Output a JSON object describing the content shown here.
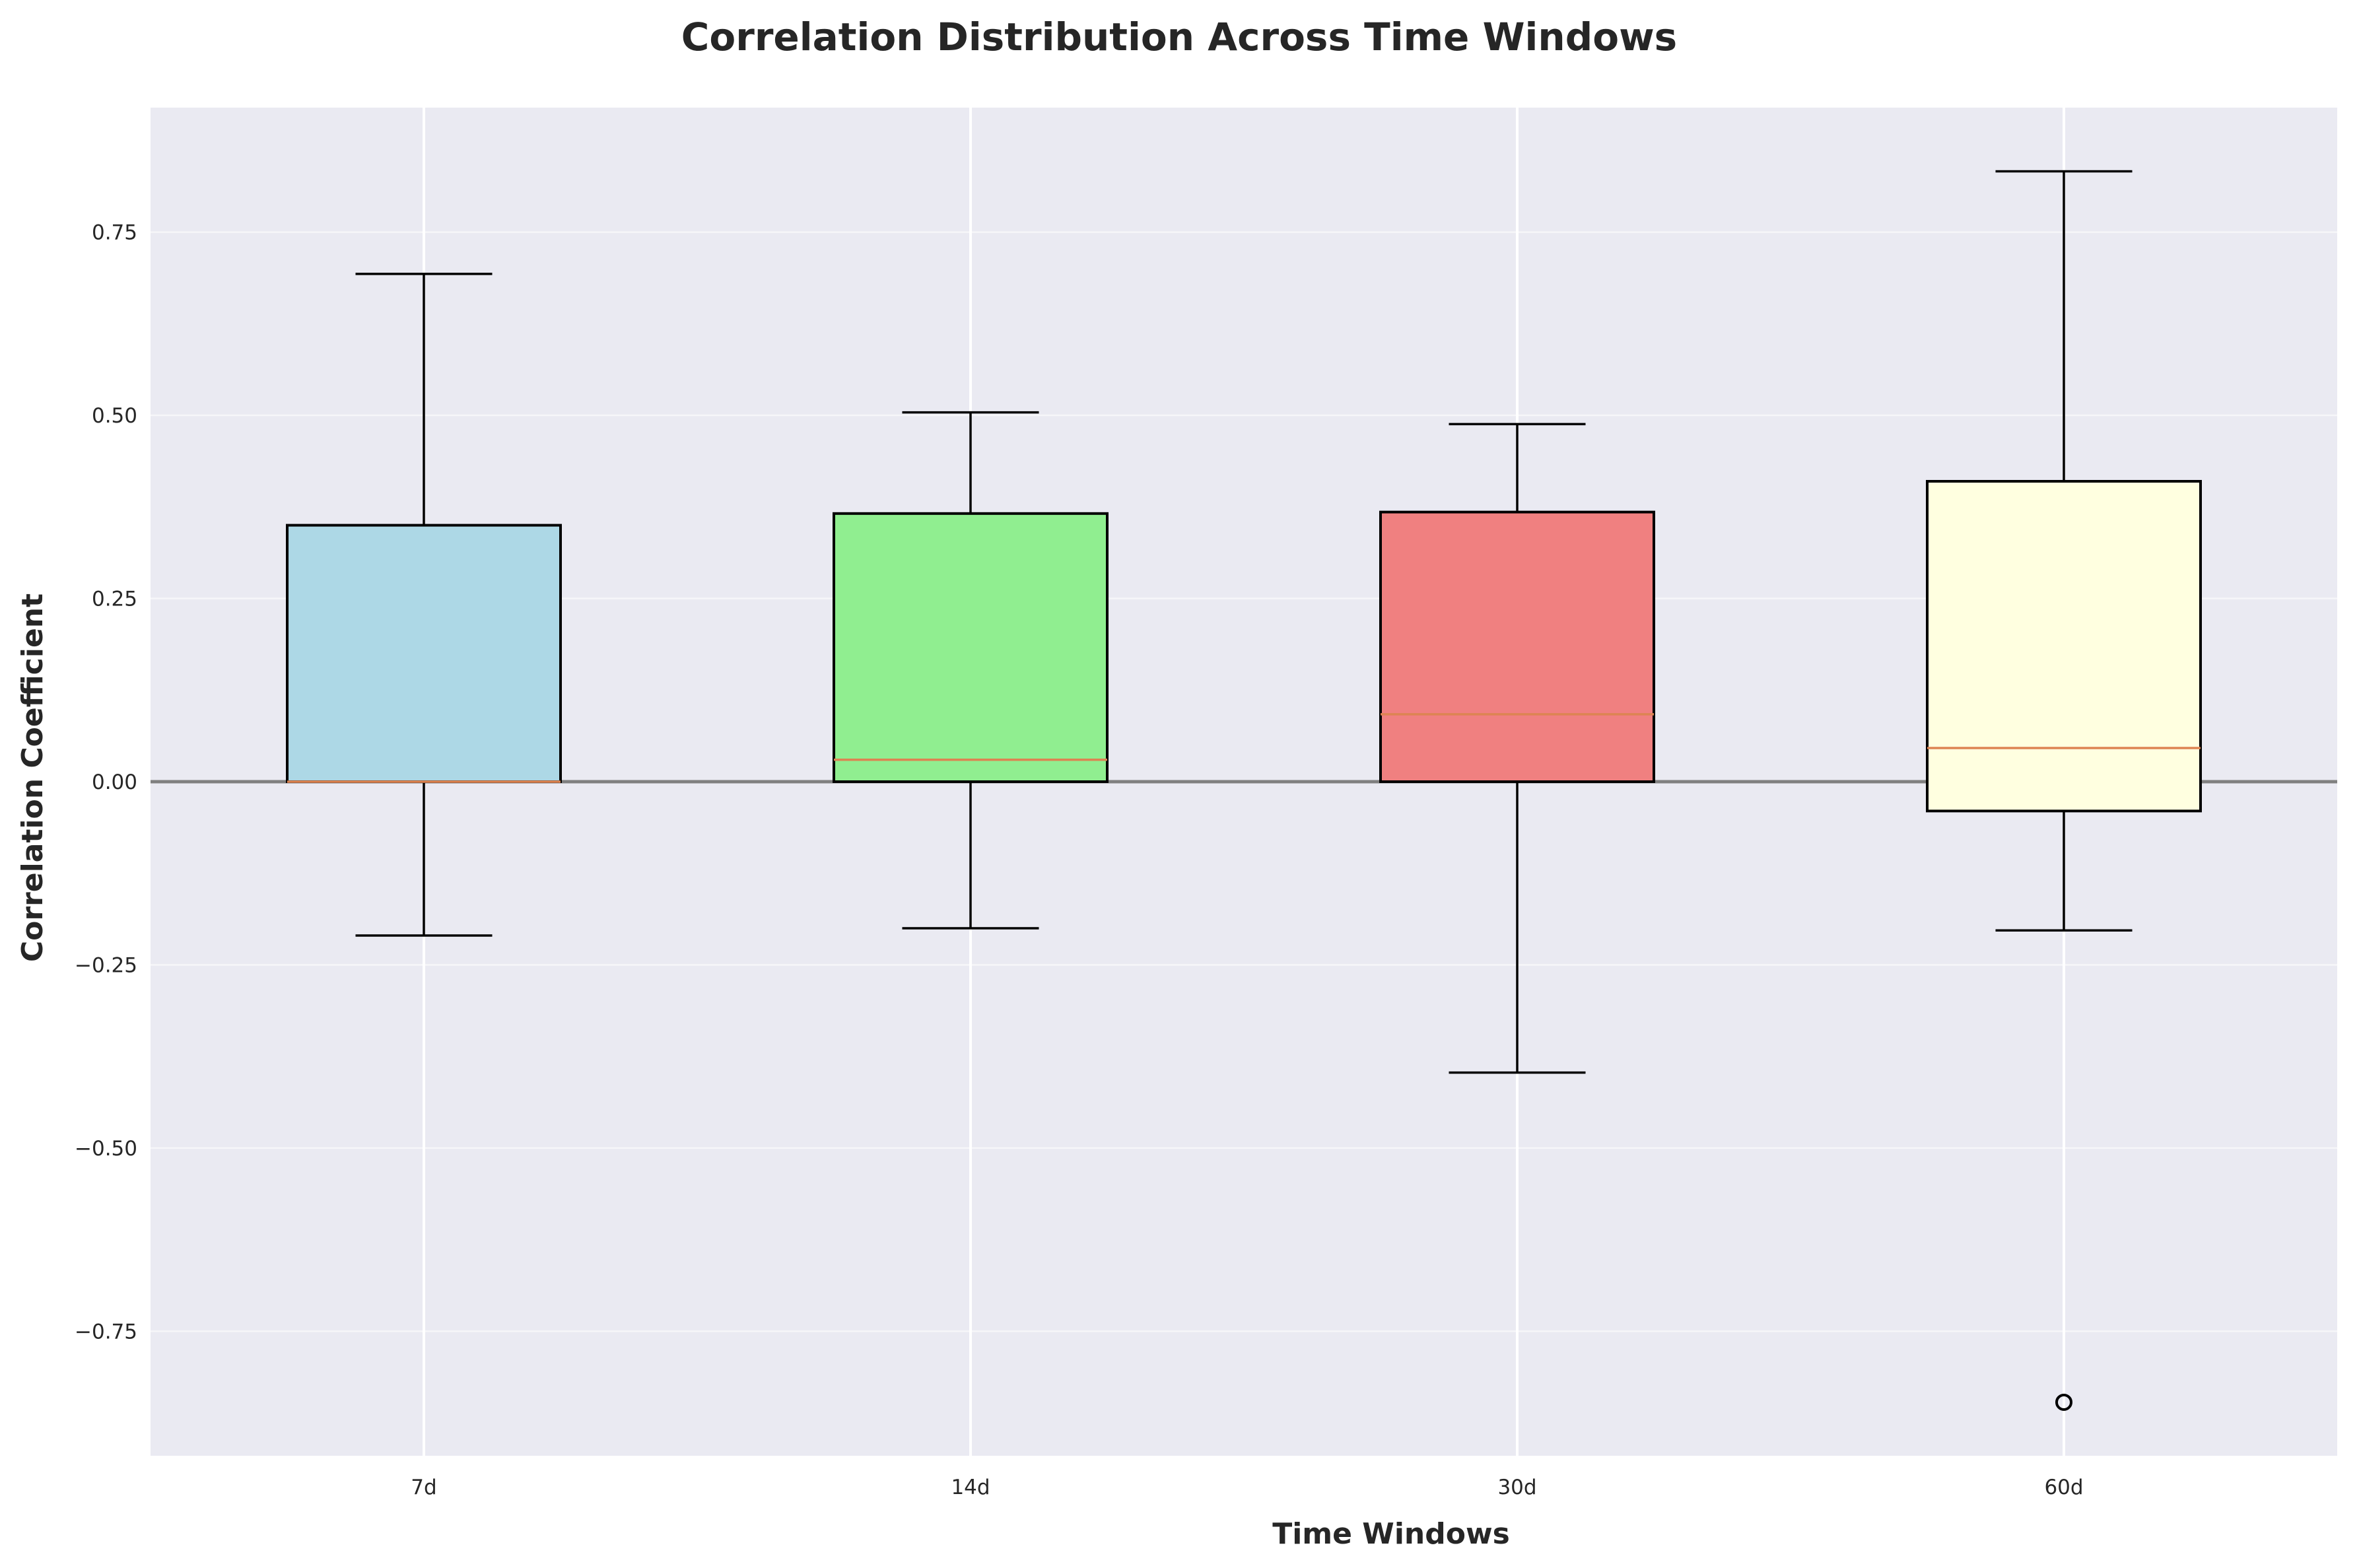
{
  "chart_data": {
    "type": "box",
    "title": "Correlation Distribution Across Time Windows",
    "xlabel": "Time Windows",
    "ylabel": "Correlation Coefficient",
    "categories": [
      "7d",
      "14d",
      "30d",
      "60d"
    ],
    "ylim": [
      -0.92,
      0.92
    ],
    "yticks": [
      -0.75,
      -0.5,
      -0.25,
      0.0,
      0.25,
      0.5,
      0.75
    ],
    "ytick_labels": [
      "−0.75",
      "−0.50",
      "−0.25",
      "0.00",
      "0.25",
      "0.50",
      "0.75"
    ],
    "grid": true,
    "zero_line": 0.0,
    "background_color": "#eaeaf2",
    "median_color": "#dd8452",
    "boxes": [
      {
        "category": "7d",
        "whisker_low": -0.21,
        "q1": 0.0,
        "median": 0.0,
        "q3": 0.35,
        "whisker_high": 0.693,
        "fill": "#add8e6",
        "outliers": []
      },
      {
        "category": "14d",
        "whisker_low": -0.2,
        "q1": 0.0,
        "median": 0.03,
        "q3": 0.366,
        "whisker_high": 0.504,
        "fill": "#90ee90",
        "outliers": []
      },
      {
        "category": "30d",
        "whisker_low": -0.397,
        "q1": 0.0,
        "median": 0.092,
        "q3": 0.368,
        "whisker_high": 0.488,
        "fill": "#f08080",
        "outliers": []
      },
      {
        "category": "60d",
        "whisker_low": -0.203,
        "q1": -0.04,
        "median": 0.046,
        "q3": 0.41,
        "whisker_high": 0.833,
        "fill": "#ffffe0",
        "outliers": [
          -0.847
        ]
      }
    ]
  }
}
